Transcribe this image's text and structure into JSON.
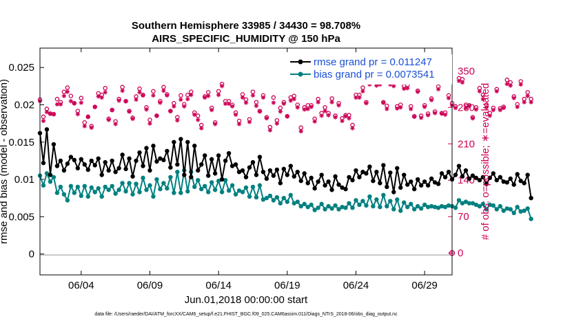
{
  "chart_data": {
    "type": "line",
    "title": "Southern Hemisphere 33985 / 34430 = 98.708%",
    "subtitle": "AIRS_SPECIFIC_HUMIDITY @ 150 hPa",
    "xlabel": "Jun.01,2018 00:00:00 start",
    "ylabel_left": "rmse and bias (model - observation)",
    "ylabel_right": "# of obs: o=possible; ∗=evaluated",
    "x_ticks": [
      "06/04",
      "06/09",
      "06/14",
      "06/19",
      "06/24",
      "06/29"
    ],
    "x_tick_days": [
      4,
      9,
      14,
      19,
      24,
      29
    ],
    "xlim": [
      1,
      31
    ],
    "y_left_ticks": [
      "0",
      "0.005",
      "0.01",
      "0.015",
      "0.02",
      "0.025"
    ],
    "ylim_left": [
      -0.0028,
      0.0276
    ],
    "y_right_ticks": [
      "0",
      "70",
      "140",
      "210",
      "280",
      "350"
    ],
    "ylim_right": [
      -42,
      394
    ],
    "footer": "data file: /Users/raeder/DAI/ATM_forcXX/CAM6_setup/f.e21.FHIST_BGC.f09_025.CAM6assim.011/Diags_NTrS_2018-06/obs_diag_output.nc",
    "colors": {
      "rmse": "#000000",
      "bias": "#008080",
      "obs": "#cc0055",
      "zero_line": "#c8c8c8"
    },
    "series": [
      {
        "name": "rmse grand pr = 0.011247",
        "key": "rmse",
        "x_start": 1.0,
        "x_step": 0.25,
        "values": [
          0.0162,
          0.0122,
          0.0167,
          0.0106,
          0.0147,
          0.0118,
          0.0125,
          0.0112,
          0.0121,
          0.013,
          0.0126,
          0.0115,
          0.0127,
          0.012,
          0.0113,
          0.0125,
          0.0119,
          0.0128,
          0.0106,
          0.0123,
          0.0112,
          0.0125,
          0.011,
          0.0115,
          0.0133,
          0.0114,
          0.0128,
          0.0104,
          0.0125,
          0.0136,
          0.0118,
          0.0142,
          0.0112,
          0.0145,
          0.0124,
          0.0128,
          0.0126,
          0.0138,
          0.0116,
          0.015,
          0.012,
          0.0154,
          0.0106,
          0.015,
          0.0103,
          0.0145,
          0.0112,
          0.012,
          0.0132,
          0.0105,
          0.0127,
          0.0108,
          0.0132,
          0.01,
          0.0125,
          0.0135,
          0.0118,
          0.012,
          0.011,
          0.0112,
          0.0103,
          0.0116,
          0.0123,
          0.0106,
          0.013,
          0.011,
          0.0101,
          0.0112,
          0.0105,
          0.0113,
          0.0095,
          0.0114,
          0.0106,
          0.0118,
          0.0104,
          0.011,
          0.0098,
          0.0108,
          0.0095,
          0.0102,
          0.0088,
          0.0097,
          0.0106,
          0.0092,
          0.0097,
          0.0086,
          0.0104,
          0.0093,
          0.0089,
          0.0087,
          0.0103,
          0.0099,
          0.0112,
          0.0103,
          0.011,
          0.0108,
          0.0117,
          0.0098,
          0.011,
          0.0095,
          0.0119,
          0.009,
          0.0109,
          0.0083,
          0.0115,
          0.0089,
          0.0106,
          0.0093,
          0.0097,
          0.0087,
          0.01,
          0.0092,
          0.0097,
          0.0092,
          0.0101,
          0.0096,
          0.0094,
          0.0108,
          0.0103,
          0.011,
          0.01,
          0.0106,
          0.0118,
          0.0104,
          0.0112,
          0.0101,
          0.0105,
          0.0102,
          0.0099,
          0.0103,
          0.0094,
          0.0102,
          0.0108,
          0.0099,
          0.0103,
          0.0097,
          0.0096,
          0.0101,
          0.0093,
          0.0107,
          0.0098,
          0.0095,
          0.0106,
          0.0075
        ]
      },
      {
        "name": "bias grand pr = 0.0073541",
        "key": "bias",
        "x_start": 1.0,
        "x_step": 0.25,
        "values": [
          0.0105,
          0.0092,
          0.0108,
          0.0097,
          0.0103,
          0.0082,
          0.009,
          0.008,
          0.0072,
          0.0091,
          0.0082,
          0.009,
          0.0078,
          0.0091,
          0.0077,
          0.0089,
          0.0083,
          0.0088,
          0.0077,
          0.009,
          0.0086,
          0.0091,
          0.0081,
          0.0086,
          0.0095,
          0.0084,
          0.0095,
          0.008,
          0.0094,
          0.0083,
          0.0102,
          0.0086,
          0.0092,
          0.0077,
          0.01,
          0.0087,
          0.0095,
          0.0088,
          0.0103,
          0.0082,
          0.011,
          0.0082,
          0.0112,
          0.0084,
          0.011,
          0.009,
          0.0099,
          0.0087,
          0.0091,
          0.0083,
          0.0096,
          0.0086,
          0.0098,
          0.0083,
          0.0099,
          0.0085,
          0.0092,
          0.008,
          0.0085,
          0.0083,
          0.0089,
          0.0077,
          0.009,
          0.0076,
          0.0092,
          0.0073,
          0.0075,
          0.0078,
          0.0072,
          0.0076,
          0.0068,
          0.0075,
          0.007,
          0.0079,
          0.0068,
          0.007,
          0.0064,
          0.0067,
          0.0063,
          0.0066,
          0.0059,
          0.0062,
          0.0067,
          0.006,
          0.0064,
          0.0061,
          0.0065,
          0.006,
          0.0063,
          0.0062,
          0.0068,
          0.0062,
          0.0072,
          0.0066,
          0.0071,
          0.0065,
          0.0077,
          0.0064,
          0.0073,
          0.0063,
          0.0079,
          0.0064,
          0.0071,
          0.006,
          0.0073,
          0.0058,
          0.0069,
          0.0063,
          0.0067,
          0.006,
          0.0064,
          0.0061,
          0.0066,
          0.0063,
          0.0064,
          0.0063,
          0.0062,
          0.0064,
          0.0063,
          0.0065,
          0.0064,
          0.0062,
          0.0072,
          0.0068,
          0.007,
          0.0068,
          0.0068,
          0.0066,
          0.0064,
          0.0067,
          0.006,
          0.0066,
          0.0065,
          0.006,
          0.0064,
          0.0058,
          0.0061,
          0.006,
          0.0055,
          0.0063,
          0.0057,
          0.0058,
          0.0061,
          0.0047
        ]
      },
      {
        "name": "possible",
        "key": "possible",
        "axis": "right",
        "x_start": 1.0,
        "x_step": 0.25,
        "values": [
          295,
          262,
          277,
          268,
          267,
          296,
          290,
          310,
          318,
          302,
          288,
          273,
          298,
          251,
          262,
          244,
          281,
          307,
          304,
          317,
          258,
          275,
          253,
          296,
          319,
          292,
          273,
          260,
          301,
          316,
          304,
          280,
          256,
          311,
          264,
          292,
          319,
          305,
          273,
          288,
          261,
          303,
          286,
          304,
          310,
          270,
          264,
          246,
          301,
          309,
          279,
          251,
          311,
          325,
          292,
          292,
          285,
          270,
          254,
          305,
          295,
          257,
          310,
          290,
          273,
          303,
          261,
          242,
          299,
          255,
          279,
          290,
          263,
          299,
          302,
          285,
          241,
          280,
          284,
          284,
          258,
          296,
          269,
          280,
          269,
          297,
          264,
          288,
          259,
          265,
          265,
          246,
          304,
          304,
          318,
          290,
          328,
          334,
          326,
          330,
          290,
          283,
          330,
          328,
          282,
          285,
          321,
          323,
          282,
          263,
          312,
          264,
          284,
          268,
          297,
          272,
          320,
          269,
          270,
          303,
          288,
          282,
          336,
          334,
          285,
          284,
          261,
          280,
          317,
          304,
          285,
          269,
          279,
          315,
          278,
          281,
          333,
          328,
          301,
          286,
          330,
          296,
          309,
          296
        ]
      },
      {
        "name": "evaluated",
        "key": "evaluated",
        "axis": "right",
        "x_start": 1.0,
        "x_step": 0.25,
        "values": [
          292,
          254,
          271,
          268,
          267,
          286,
          286,
          302,
          310,
          292,
          288,
          267,
          289,
          244,
          262,
          241,
          281,
          301,
          299,
          309,
          256,
          275,
          248,
          293,
          312,
          292,
          272,
          258,
          295,
          309,
          303,
          276,
          249,
          303,
          264,
          289,
          312,
          303,
          273,
          282,
          255,
          295,
          282,
          296,
          304,
          266,
          256,
          240,
          299,
          302,
          275,
          248,
          304,
          321,
          287,
          287,
          282,
          266,
          248,
          299,
          289,
          252,
          303,
          283,
          272,
          299,
          259,
          236,
          289,
          249,
          272,
          287,
          263,
          293,
          296,
          280,
          234,
          276,
          277,
          281,
          253,
          290,
          264,
          273,
          265,
          290,
          261,
          284,
          254,
          263,
          259,
          240,
          299,
          299,
          311,
          288,
          324,
          330,
          322,
          324,
          289,
          277,
          324,
          321,
          278,
          280,
          316,
          317,
          277,
          262,
          310,
          260,
          281,
          265,
          294,
          269,
          315,
          268,
          266,
          298,
          284,
          279,
          331,
          328,
          279,
          283,
          259,
          276,
          311,
          296,
          280,
          264,
          275,
          311,
          275,
          279,
          325,
          322,
          298,
          281,
          324,
          290,
          302,
          290
        ]
      }
    ],
    "legend_position": "top-right",
    "grid": false
  }
}
